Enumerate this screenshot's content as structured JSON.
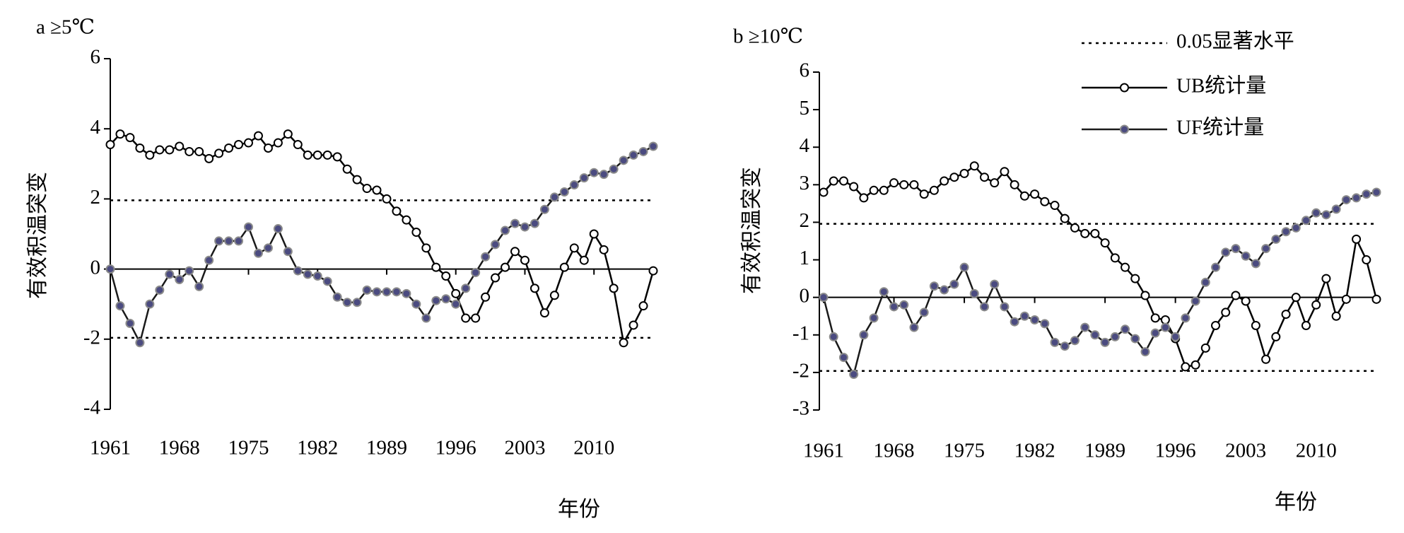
{
  "chart_data": [
    {
      "type": "line",
      "title": "a ≥5℃",
      "ylabel": "有效积温突变",
      "xlabel": "年份",
      "x": [
        1961,
        1962,
        1963,
        1964,
        1965,
        1966,
        1967,
        1968,
        1969,
        1970,
        1971,
        1972,
        1973,
        1974,
        1975,
        1976,
        1977,
        1978,
        1979,
        1980,
        1981,
        1982,
        1983,
        1984,
        1985,
        1986,
        1987,
        1988,
        1989,
        1990,
        1991,
        1992,
        1993,
        1994,
        1995,
        1996,
        1997,
        1998,
        1999,
        2000,
        2001,
        2002,
        2003,
        2004,
        2005,
        2006,
        2007,
        2008,
        2009,
        2010,
        2011,
        2012,
        2013,
        2014,
        2015,
        2016
      ],
      "xlim": [
        1961,
        2016
      ],
      "xticks": [
        1961,
        1968,
        1975,
        1982,
        1989,
        1996,
        2003,
        2010
      ],
      "ylim": [
        -4,
        6
      ],
      "yticks": [
        6,
        4,
        2,
        0,
        -2,
        -4
      ],
      "reference_lines": {
        "values": [
          1.96,
          -1.96
        ]
      },
      "series": [
        {
          "color": "#000000",
          "marker_fill": "#ffffff",
          "values": [
            3.55,
            3.85,
            3.75,
            3.45,
            3.25,
            3.4,
            3.4,
            3.5,
            3.35,
            3.35,
            3.15,
            3.3,
            3.45,
            3.55,
            3.6,
            3.8,
            3.45,
            3.6,
            3.85,
            3.55,
            3.25,
            3.25,
            3.25,
            3.2,
            2.85,
            2.55,
            2.3,
            2.25,
            2.0,
            1.65,
            1.4,
            1.05,
            0.6,
            0.05,
            -0.2,
            -0.7,
            -1.4,
            -1.4,
            -0.8,
            -0.25,
            0.05,
            0.5,
            0.25,
            -0.55,
            -1.25,
            -0.75,
            0.05,
            0.6,
            0.25,
            1.0,
            0.55,
            -0.55,
            -2.1,
            -1.6,
            -1.05,
            -0.05
          ]
        },
        {
          "color": "#1a1a1a",
          "marker_fill": "#4b4b80",
          "values": [
            0,
            -1.05,
            -1.55,
            -2.1,
            -1.0,
            -0.6,
            -0.15,
            -0.3,
            -0.05,
            -0.5,
            0.25,
            0.8,
            0.8,
            0.8,
            1.2,
            0.45,
            0.6,
            1.15,
            0.5,
            -0.05,
            -0.15,
            -0.2,
            -0.35,
            -0.8,
            -0.95,
            -0.95,
            -0.6,
            -0.65,
            -0.65,
            -0.65,
            -0.7,
            -1.0,
            -1.4,
            -0.9,
            -0.85,
            -1.0,
            -0.55,
            -0.1,
            0.35,
            0.7,
            1.1,
            1.3,
            1.2,
            1.3,
            1.7,
            2.05,
            2.2,
            2.4,
            2.6,
            2.75,
            2.7,
            2.85,
            3.1,
            3.25,
            3.35,
            3.5
          ]
        }
      ]
    },
    {
      "type": "line",
      "title": "b ≥10℃",
      "ylabel": "有效积温突变",
      "xlabel": "年份",
      "x": [
        1961,
        1962,
        1963,
        1964,
        1965,
        1966,
        1967,
        1968,
        1969,
        1970,
        1971,
        1972,
        1973,
        1974,
        1975,
        1976,
        1977,
        1978,
        1979,
        1980,
        1981,
        1982,
        1983,
        1984,
        1985,
        1986,
        1987,
        1988,
        1989,
        1990,
        1991,
        1992,
        1993,
        1994,
        1995,
        1996,
        1997,
        1998,
        1999,
        2000,
        2001,
        2002,
        2003,
        2004,
        2005,
        2006,
        2007,
        2008,
        2009,
        2010,
        2011,
        2012,
        2013,
        2014,
        2015,
        2016
      ],
      "xlim": [
        1961,
        2016
      ],
      "xticks": [
        1961,
        1968,
        1975,
        1982,
        1989,
        1996,
        2003,
        2010
      ],
      "ylim": [
        -3,
        6
      ],
      "yticks": [
        6,
        5,
        4,
        3,
        2,
        1,
        0,
        -1,
        -2,
        -3
      ],
      "reference_lines": {
        "label": "0.05显著水平",
        "values": [
          1.96,
          -1.96
        ]
      },
      "series": [
        {
          "name": "UB统计量",
          "color": "#000000",
          "marker_fill": "#ffffff",
          "values": [
            2.8,
            3.1,
            3.1,
            2.95,
            2.65,
            2.85,
            2.85,
            3.05,
            3.0,
            3.0,
            2.75,
            2.85,
            3.1,
            3.2,
            3.3,
            3.5,
            3.2,
            3.05,
            3.35,
            3.0,
            2.7,
            2.75,
            2.55,
            2.45,
            2.1,
            1.85,
            1.7,
            1.7,
            1.45,
            1.05,
            0.8,
            0.5,
            0.05,
            -0.55,
            -0.6,
            -1.1,
            -1.85,
            -1.8,
            -1.35,
            -0.75,
            -0.4,
            0.05,
            -0.1,
            -0.75,
            -1.65,
            -1.05,
            -0.45,
            0.0,
            -0.75,
            -0.2,
            0.5,
            -0.5,
            -0.05,
            1.55,
            1.0,
            -0.05
          ]
        },
        {
          "name": "UF统计量",
          "color": "#1a1a1a",
          "marker_fill": "#4b4b80",
          "values": [
            0,
            -1.05,
            -1.6,
            -2.05,
            -1.0,
            -0.55,
            0.15,
            -0.25,
            -0.2,
            -0.8,
            -0.4,
            0.3,
            0.2,
            0.35,
            0.8,
            0.1,
            -0.25,
            0.35,
            -0.25,
            -0.65,
            -0.5,
            -0.6,
            -0.7,
            -1.2,
            -1.3,
            -1.15,
            -0.8,
            -1.0,
            -1.2,
            -1.05,
            -0.85,
            -1.1,
            -1.45,
            -0.95,
            -0.8,
            -1.05,
            -0.55,
            -0.1,
            0.4,
            0.8,
            1.2,
            1.3,
            1.1,
            0.9,
            1.3,
            1.55,
            1.75,
            1.85,
            2.05,
            2.25,
            2.2,
            2.35,
            2.6,
            2.65,
            2.75,
            2.8
          ]
        }
      ]
    }
  ]
}
